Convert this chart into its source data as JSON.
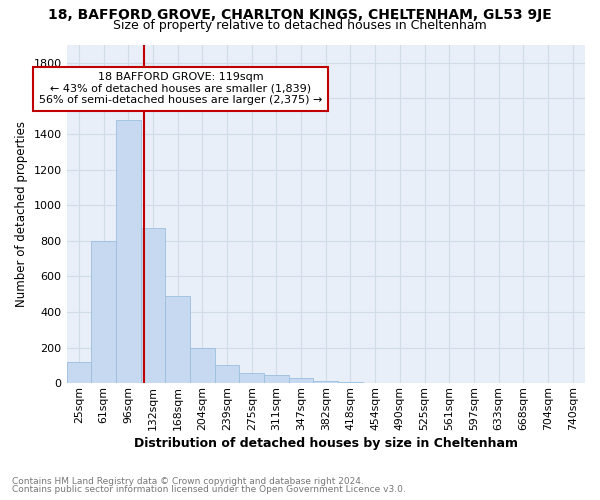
{
  "title_line1": "18, BAFFORD GROVE, CHARLTON KINGS, CHELTENHAM, GL53 9JE",
  "title_line2": "Size of property relative to detached houses in Cheltenham",
  "xlabel": "Distribution of detached houses by size in Cheltenham",
  "ylabel": "Number of detached properties",
  "footnote1": "Contains HM Land Registry data © Crown copyright and database right 2024.",
  "footnote2": "Contains public sector information licensed under the Open Government Licence v3.0.",
  "property_label": "18 BAFFORD GROVE: 119sqm",
  "annotation_line1": "← 43% of detached houses are smaller (1,839)",
  "annotation_line2": "56% of semi-detached houses are larger (2,375) →",
  "bar_labels": [
    "25sqm",
    "61sqm",
    "96sqm",
    "132sqm",
    "168sqm",
    "204sqm",
    "239sqm",
    "275sqm",
    "311sqm",
    "347sqm",
    "382sqm",
    "418sqm",
    "454sqm",
    "490sqm",
    "525sqm",
    "561sqm",
    "597sqm",
    "633sqm",
    "668sqm",
    "704sqm",
    "740sqm"
  ],
  "bar_heights": [
    120,
    800,
    1480,
    870,
    490,
    200,
    100,
    60,
    45,
    30,
    15,
    5,
    0,
    0,
    0,
    0,
    0,
    0,
    0,
    0,
    0
  ],
  "bar_color": "#c6d9f0",
  "bar_edge_color": "#9bbfde",
  "vline_color": "#c00000",
  "vline_x": 3,
  "annotation_box_color": "#c00000",
  "ylim": [
    0,
    1900
  ],
  "yticks": [
    0,
    200,
    400,
    600,
    800,
    1000,
    1200,
    1400,
    1600,
    1800
  ],
  "grid_color": "#d0dce8",
  "background_color": "#ffffff",
  "plot_bg_color": "#e8eff8"
}
